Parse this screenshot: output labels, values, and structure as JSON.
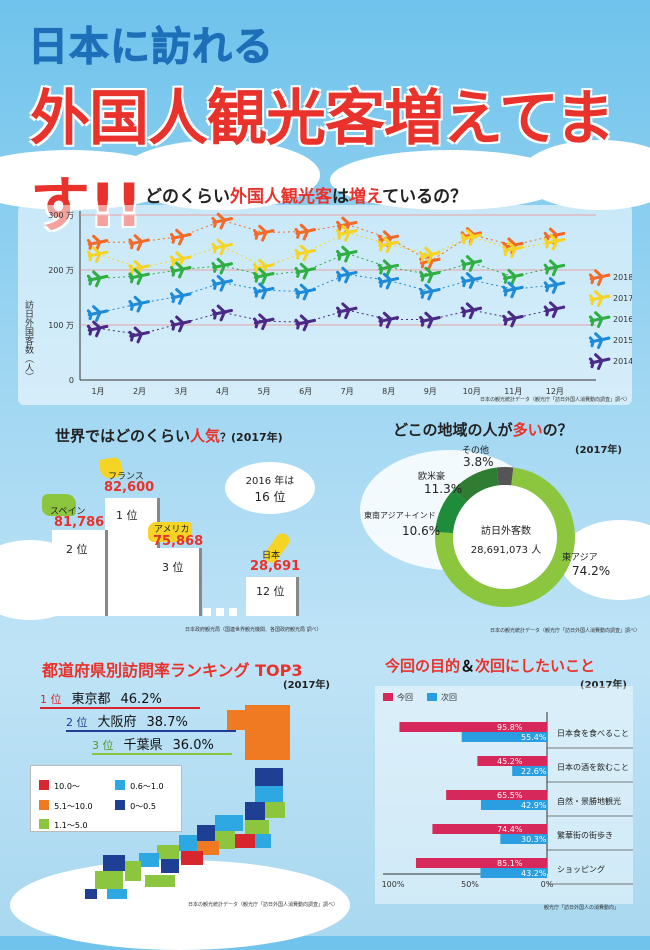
{
  "header": {
    "title_line1": "日本に訪れる",
    "title_line2": "外国人観光客増えてます!!"
  },
  "monthly_section": {
    "question_a": "どのくらい",
    "question_b": "外国人観光客",
    "question_c": "は",
    "question_d": "増え",
    "question_e": "て",
    "question_f": "いるの？",
    "y_axis_label": "訪日外国客数（人）",
    "source": "日本の観光統計データ（観光庁「訪日外国人消費動向調査」調べ）"
  },
  "popularity_section": {
    "title_a": "世界ではどのくらい",
    "title_b": "人気",
    "title_c": "？(2017年)",
    "bubble_year": "2016 年は",
    "bubble_rank": "16 位",
    "podium": [
      {
        "country": "フランス",
        "value": "82,600",
        "rank": "1 位"
      },
      {
        "country": "スペイン",
        "value": "81,786",
        "rank": "2 位"
      },
      {
        "country": "アメリカ",
        "value": "75,868",
        "rank": "3 位"
      },
      {
        "country": "日本",
        "value": "28,691",
        "rank": "12 位"
      }
    ],
    "source": "日本政府観光局（国連世界観光機関、各国政府観光局 調べ）"
  },
  "region_section": {
    "title_a": "どこの地域の人が",
    "title_b": "多い",
    "title_c": "の？",
    "title_year": "(2017年)",
    "center_label": "訪日外客数",
    "center_value": "28,691,073 人",
    "segments": [
      {
        "name": "東アジア",
        "pct": "74.2%",
        "value": 74.2,
        "color": "#8cc63f"
      },
      {
        "name": "東南アジア＋インド",
        "pct": "10.6%",
        "value": 10.6,
        "color": "#1e8c3a"
      },
      {
        "name": "欧米豪",
        "pct": "11.3%",
        "value": 11.3,
        "color": "#2e7d32"
      },
      {
        "name": "その他",
        "pct": "3.8%",
        "value": 3.8,
        "color": "#555555"
      }
    ],
    "source": "日本の観光統計データ（観光庁「訪日外国人消費動向調査」調べ）"
  },
  "prefecture_section": {
    "title": "都道府県別訪問率ランキング TOP3",
    "year": "(2017年)",
    "ranks": [
      {
        "rank": "1 位",
        "name": "東京都",
        "pct": "46.2%"
      },
      {
        "rank": "2 位",
        "name": "大阪府",
        "pct": "38.7%"
      },
      {
        "rank": "3 位",
        "name": "千葉県",
        "pct": "36.0%"
      }
    ],
    "legend": [
      {
        "label": "10.0〜",
        "color": "#d7262e"
      },
      {
        "label": "0.6〜1.0",
        "color": "#2da8e3"
      },
      {
        "label": "5.1〜10.0",
        "color": "#f07a22"
      },
      {
        "label": "0〜0.5",
        "color": "#1f3f95"
      },
      {
        "label": "1.1〜5.0",
        "color": "#8cc63f"
      }
    ],
    "source": "日本の観光統計データ（観光庁「訪日外国人消費動向調査」調べ）"
  },
  "purpose_section": {
    "title_a": "今回の目的",
    "title_b": "＆",
    "title_c": "次回にしたいこと",
    "year": "(2017年)",
    "source": "観光庁「訪日外国人の消費動向」"
  },
  "chart_data": [
    {
      "type": "scatter",
      "title": "どのくらい外国人観光客は増えているの？",
      "ylabel": "訪日外国客数（人）",
      "ylim": [
        0,
        3000000
      ],
      "y_ticks": [
        "0",
        "100 万",
        "200 万",
        "300 万"
      ],
      "categories": [
        "1月",
        "2月",
        "3月",
        "4月",
        "5月",
        "6月",
        "7月",
        "8月",
        "9月",
        "10月",
        "11月",
        "12月"
      ],
      "legend_position": "right",
      "series": [
        {
          "name": "2018",
          "color": "#f26b2a",
          "values": [
            2500000,
            2510000,
            2610000,
            2900000,
            2680000,
            2700000,
            2830000,
            2580000,
            2160000,
            2640000,
            2450000,
            2630000
          ]
        },
        {
          "name": "2017",
          "color": "#f5d426",
          "values": [
            2290000,
            2040000,
            2200000,
            2430000,
            2060000,
            2320000,
            2680000,
            2470000,
            2280000,
            2600000,
            2380000,
            2520000
          ]
        },
        {
          "name": "2016",
          "color": "#2fae44",
          "values": [
            1850000,
            1890000,
            2010000,
            2080000,
            1900000,
            1990000,
            2300000,
            2050000,
            1920000,
            2130000,
            1880000,
            2050000
          ]
        },
        {
          "name": "2015",
          "color": "#1d8bd8",
          "values": [
            1220000,
            1390000,
            1530000,
            1770000,
            1630000,
            1610000,
            1920000,
            1810000,
            1610000,
            1820000,
            1650000,
            1730000
          ]
        },
        {
          "name": "2014",
          "color": "#4a2a86",
          "values": [
            940000,
            830000,
            1030000,
            1230000,
            1070000,
            1050000,
            1270000,
            1100000,
            1100000,
            1270000,
            1120000,
            1290000
          ]
        }
      ]
    },
    {
      "type": "bar",
      "orientation": "horizontal",
      "title": "今回の目的＆次回にしたいこと",
      "categories": [
        "日本食を食べること",
        "日本の酒を飲むこと",
        "自然・景勝地観光",
        "繁華街の街歩き",
        "ショッピング"
      ],
      "xlim": [
        0,
        100
      ],
      "x_ticks": [
        "100%",
        "50%",
        "0%"
      ],
      "legend_position": "top-left",
      "series": [
        {
          "name": "今回",
          "color": "#d6285a",
          "values": [
            95.8,
            45.2,
            65.5,
            74.4,
            85.1
          ],
          "labels": [
            "95.8%",
            "45.2%",
            "65.5%",
            "74.4%",
            "85.1%"
          ]
        },
        {
          "name": "次回",
          "color": "#2a9ee0",
          "values": [
            55.4,
            22.6,
            42.9,
            30.3,
            43.2
          ],
          "labels": [
            "55.4%",
            "22.6%",
            "42.9%",
            "30.3%",
            "43.2%"
          ]
        }
      ]
    }
  ]
}
